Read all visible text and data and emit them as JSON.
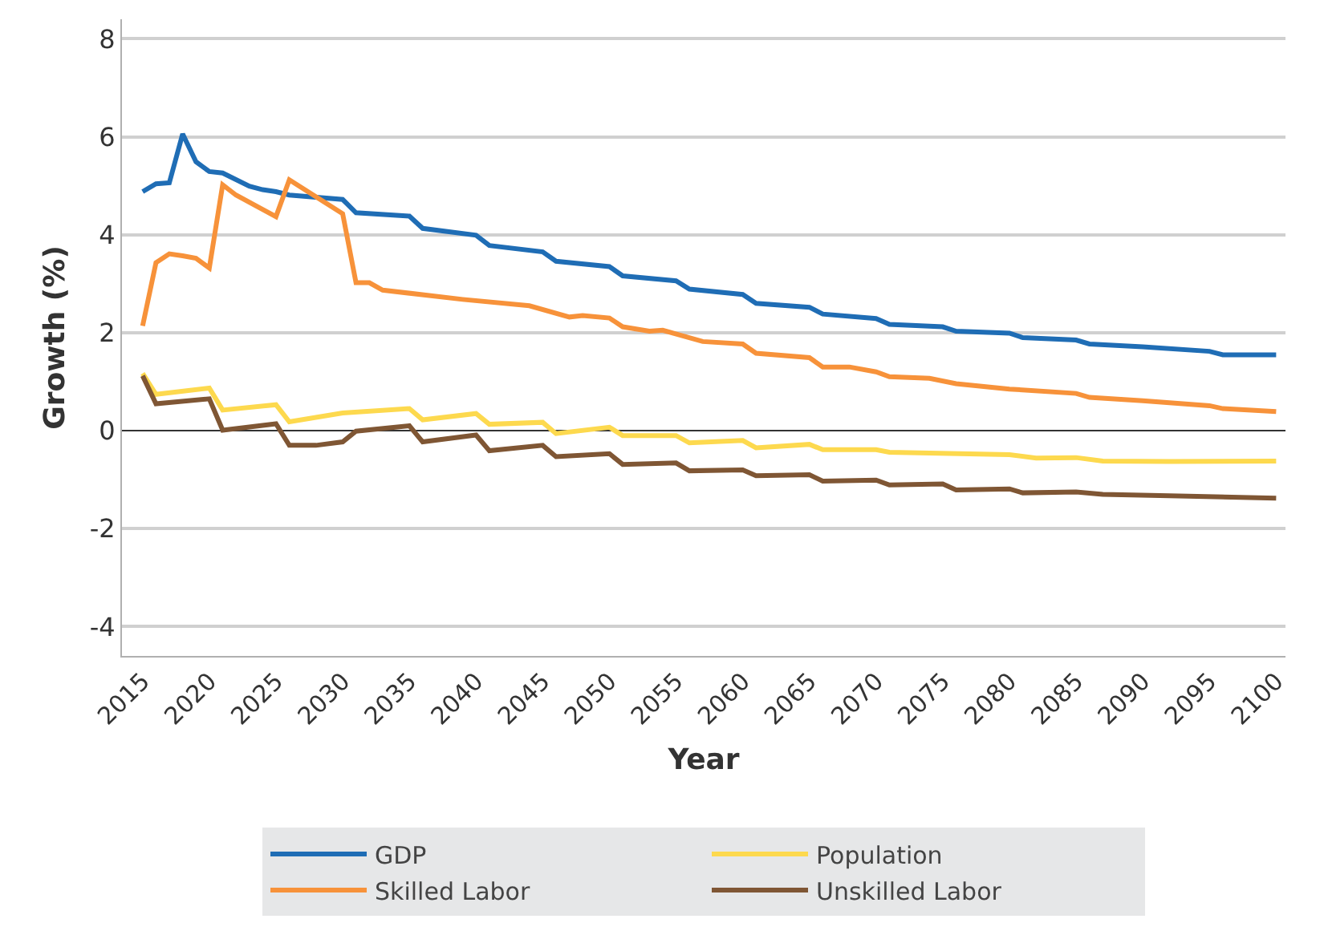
{
  "chart_data": {
    "type": "line",
    "xlabel": "Year",
    "ylabel": "Growth (%)",
    "xlim": [
      2013.45,
      2100.7
    ],
    "xticks": [
      2015,
      2020,
      2025,
      2030,
      2035,
      2040,
      2045,
      2050,
      2055,
      2060,
      2065,
      2070,
      2075,
      2080,
      2085,
      2090,
      2095,
      2100
    ],
    "ylim": [
      -4.6,
      8.4
    ],
    "yticks": [
      -4,
      -2,
      0,
      2,
      4,
      6,
      8
    ],
    "grid": "y",
    "legend": "bottom",
    "marker": "none",
    "line_style": "solid",
    "series": [
      {
        "name": "GDP",
        "color": "#1f6db5",
        "x": [
          2015,
          2016,
          2017,
          2018,
          2019,
          2020,
          2021,
          2023,
          2024,
          2025,
          2026,
          2030,
          2031,
          2035,
          2036,
          2040,
          2041,
          2045,
          2046,
          2050,
          2051,
          2055,
          2056,
          2060,
          2061,
          2065,
          2066,
          2070,
          2071,
          2075,
          2076,
          2080,
          2081,
          2085,
          2086,
          2090,
          2095,
          2096,
          2100
        ],
        "values": [
          4.88,
          5.04,
          5.06,
          6.06,
          5.49,
          5.29,
          5.26,
          4.99,
          4.92,
          4.88,
          4.81,
          4.72,
          4.45,
          4.38,
          4.13,
          3.99,
          3.78,
          3.65,
          3.46,
          3.35,
          3.16,
          3.06,
          2.89,
          2.78,
          2.6,
          2.52,
          2.38,
          2.29,
          2.17,
          2.12,
          2.03,
          1.99,
          1.9,
          1.85,
          1.77,
          1.71,
          1.62,
          1.55,
          1.55
        ]
      },
      {
        "name": "Population",
        "color": "#fdd94e",
        "x": [
          2015,
          2016,
          2020,
          2021,
          2025,
          2026,
          2030,
          2035,
          2036,
          2040,
          2041,
          2045,
          2046,
          2050,
          2051,
          2055,
          2056,
          2060,
          2061,
          2065,
          2066,
          2070,
          2071,
          2080,
          2082,
          2085,
          2087,
          2092,
          2100
        ],
        "values": [
          1.17,
          0.74,
          0.87,
          0.42,
          0.53,
          0.18,
          0.36,
          0.45,
          0.22,
          0.35,
          0.13,
          0.17,
          -0.06,
          0.07,
          -0.1,
          -0.1,
          -0.25,
          -0.2,
          -0.35,
          -0.28,
          -0.39,
          -0.39,
          -0.44,
          -0.49,
          -0.56,
          -0.55,
          -0.62,
          -0.63,
          -0.62
        ]
      },
      {
        "name": "Skilled Labor",
        "color": "#f7923a",
        "x": [
          2015,
          2016,
          2017,
          2018,
          2019,
          2020,
          2021,
          2022,
          2025,
          2026,
          2030,
          2031,
          2032,
          2033,
          2039,
          2044,
          2047,
          2048,
          2050,
          2051,
          2053,
          2054,
          2057,
          2060,
          2061,
          2065,
          2066,
          2068,
          2070,
          2071,
          2074,
          2076,
          2080,
          2085,
          2086,
          2090,
          2095,
          2096,
          2100
        ],
        "values": [
          2.14,
          3.43,
          3.61,
          3.57,
          3.52,
          3.32,
          5.02,
          4.81,
          4.37,
          5.12,
          4.43,
          3.02,
          3.02,
          2.87,
          2.68,
          2.55,
          2.32,
          2.35,
          2.3,
          2.12,
          2.03,
          2.05,
          1.82,
          1.77,
          1.58,
          1.49,
          1.3,
          1.3,
          1.2,
          1.1,
          1.07,
          0.96,
          0.85,
          0.76,
          0.68,
          0.61,
          0.51,
          0.45,
          0.39
        ]
      },
      {
        "name": "Unskilled Labor",
        "color": "#7f5634",
        "x": [
          2015,
          2016,
          2020,
          2021,
          2025,
          2026,
          2028,
          2030,
          2031,
          2035,
          2036,
          2040,
          2041,
          2045,
          2046,
          2050,
          2051,
          2055,
          2056,
          2060,
          2061,
          2065,
          2066,
          2070,
          2071,
          2075,
          2076,
          2080,
          2081,
          2085,
          2087,
          2092,
          2100
        ],
        "values": [
          1.12,
          0.55,
          0.65,
          0.01,
          0.14,
          -0.3,
          -0.3,
          -0.23,
          -0.01,
          0.1,
          -0.23,
          -0.09,
          -0.41,
          -0.3,
          -0.53,
          -0.47,
          -0.69,
          -0.66,
          -0.82,
          -0.8,
          -0.92,
          -0.9,
          -1.03,
          -1.01,
          -1.11,
          -1.09,
          -1.21,
          -1.19,
          -1.27,
          -1.25,
          -1.3,
          -1.33,
          -1.38
        ]
      }
    ]
  }
}
